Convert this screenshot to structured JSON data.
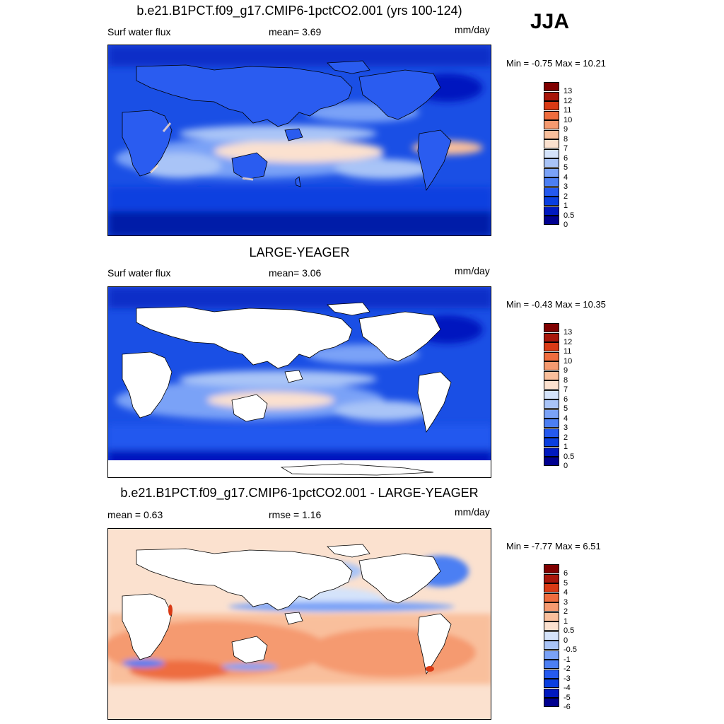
{
  "season": "JJA",
  "colors": {
    "base13": [
      "#000090",
      "#0019bf",
      "#0a3fe0",
      "#2459ef",
      "#4c7ff3",
      "#7aa2f7",
      "#a9c4f7",
      "#d4e3fa",
      "#fbe1cf",
      "#f9bf9c",
      "#f59a70",
      "#ee6d3f",
      "#d93a15",
      "#a8160a",
      "#800000"
    ],
    "diff6": [
      "#000090",
      "#0019bf",
      "#0a3fe0",
      "#2459ef",
      "#4c7ff3",
      "#7aa2f7",
      "#a9c4f7",
      "#d4e3fa",
      "#fbe1cf",
      "#f9bf9c",
      "#f59a70",
      "#ee6d3f",
      "#d93a15",
      "#a8160a",
      "#800000"
    ],
    "land": "#ffffff",
    "coast": "#000000"
  },
  "panels": [
    {
      "title": "b.e21.B1PCT.f09_g17.CMIP6-1pctCO2.001 (yrs 100-124)",
      "left_label": "Surf water flux",
      "center_label": "mean=   3.69",
      "units": "mm/day",
      "minmax": "Min =  -0.75 Max =  10.21",
      "levels": [
        "13",
        "12",
        "11",
        "10",
        "9",
        "8",
        "7",
        "6",
        "5",
        "4",
        "3",
        "2",
        "1",
        "0.5",
        "0"
      ]
    },
    {
      "title": "LARGE-YEAGER",
      "left_label": "Surf water flux",
      "center_label": "mean=   3.06",
      "units": "mm/day",
      "minmax": "Min =  -0.43 Max =  10.35",
      "levels": [
        "13",
        "12",
        "11",
        "10",
        "9",
        "8",
        "7",
        "6",
        "5",
        "4",
        "3",
        "2",
        "1",
        "0.5",
        "0"
      ]
    },
    {
      "title": "b.e21.B1PCT.f09_g17.CMIP6-1pctCO2.001 - LARGE-YEAGER",
      "left_label": "mean =   0.63",
      "center_label": "rmse =   1.16",
      "units": "mm/day",
      "minmax": "Min =  -7.77 Max =   6.51",
      "levels": [
        "6",
        "5",
        "4",
        "3",
        "2",
        "1",
        "0.5",
        "0",
        "-0.5",
        "-1",
        "-2",
        "-3",
        "-4",
        "-5",
        "-6"
      ]
    }
  ]
}
